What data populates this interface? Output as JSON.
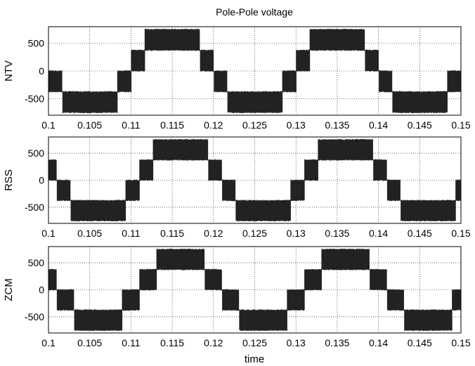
{
  "figure": {
    "title": "Pole-Pole voltage",
    "xlabel": "time"
  },
  "chart_data": [
    {
      "type": "line",
      "ylabel": "NTV",
      "x_range": [
        0.1,
        0.15
      ],
      "ylim": [
        -800,
        800
      ],
      "xticks": [
        "0.1",
        "0.105",
        "0.11",
        "0.115",
        "0.12",
        "0.125",
        "0.13",
        "0.135",
        "0.14",
        "0.145",
        "0.15"
      ],
      "yticks": [
        "500",
        "0",
        "-500"
      ],
      "ytick_values": [
        500,
        0,
        -500
      ],
      "grid": true,
      "series": [
        {
          "fundamental_period": 0.02,
          "dc_bus_voltage": 750,
          "levels": [
            -750,
            -375,
            0,
            375,
            750
          ],
          "peak_phase_time": 0.115
        }
      ]
    },
    {
      "type": "line",
      "ylabel": "RSS",
      "x_range": [
        0.1,
        0.15
      ],
      "ylim": [
        -800,
        800
      ],
      "xticks": [
        "0.1",
        "0.105",
        "0.11",
        "0.115",
        "0.12",
        "0.125",
        "0.13",
        "0.135",
        "0.14",
        "0.145",
        "0.15"
      ],
      "yticks": [
        "500",
        "0",
        "-500"
      ],
      "ytick_values": [
        500,
        0,
        -500
      ],
      "grid": true,
      "series": [
        {
          "fundamental_period": 0.02,
          "dc_bus_voltage": 750,
          "levels": [
            -750,
            -375,
            0,
            375,
            750
          ],
          "peak_phase_time": 0.116
        }
      ]
    },
    {
      "type": "line",
      "ylabel": "ZCM",
      "x_range": [
        0.1,
        0.15
      ],
      "ylim": [
        -800,
        800
      ],
      "xticks": [
        "0.1",
        "0.105",
        "0.11",
        "0.115",
        "0.12",
        "0.125",
        "0.13",
        "0.135",
        "0.14",
        "0.145",
        "0.15"
      ],
      "yticks": [
        "500",
        "0",
        "-500"
      ],
      "ytick_values": [
        500,
        0,
        -500
      ],
      "grid": true,
      "series": [
        {
          "fundamental_period": 0.02,
          "dc_bus_voltage": 750,
          "levels": [
            -750,
            -375,
            0,
            375,
            750
          ],
          "peak_phase_time": 0.116
        }
      ]
    }
  ]
}
